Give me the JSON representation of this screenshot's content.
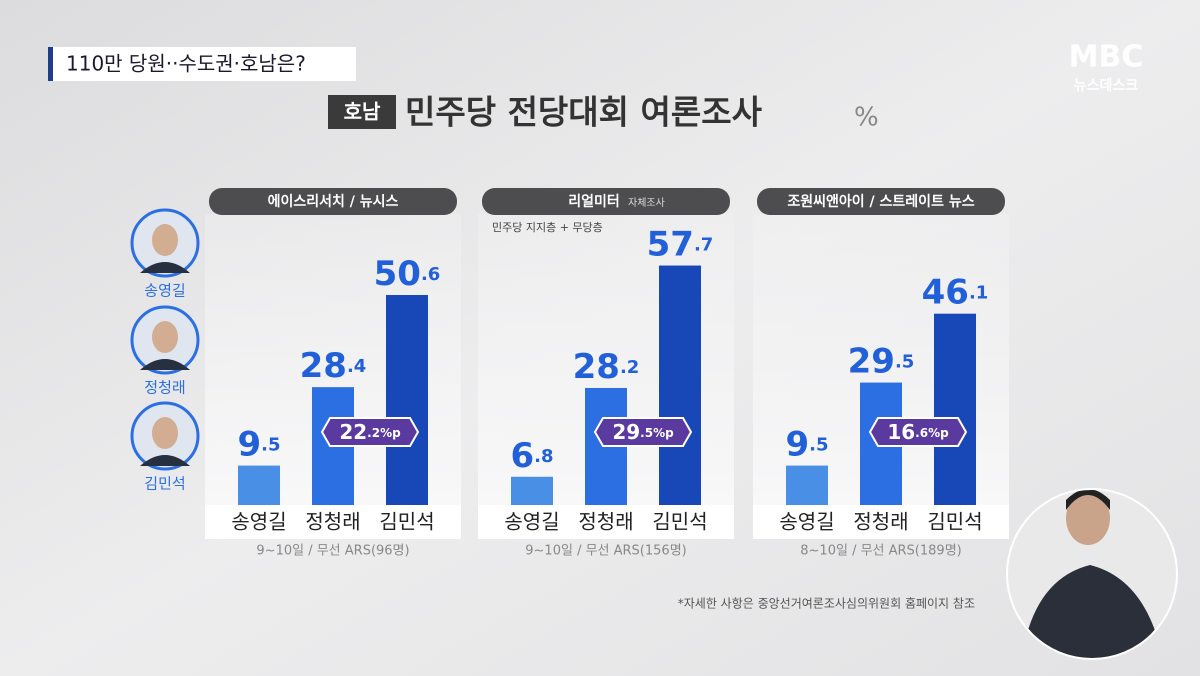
{
  "header": {
    "headline": "110만 당원··수도권·호남은?",
    "region": "호남",
    "title": "민주당 전당대회 여론조사",
    "unit": "%"
  },
  "logo": {
    "brand": "MBC",
    "program": "뉴스데스크"
  },
  "candidates": [
    "송영길",
    "정청래",
    "김민석"
  ],
  "footnote": "*자세한 사항은 중앙선거여론조사심의위원회 홈페이지 참조",
  "chart_data": [
    {
      "type": "bar",
      "title": "에이스리서치 / 뉴시스",
      "categories": [
        "송영길",
        "정청래",
        "김민석"
      ],
      "values": [
        9.5,
        28.4,
        50.6
      ],
      "colors": [
        "#4a8fe6",
        "#2b6fe3",
        "#1848b8"
      ],
      "annotation": "22.2%p",
      "note": "9~10일 / 무선 ARS(96명)"
    },
    {
      "type": "bar",
      "title": "리얼미터",
      "title_note": "자체조사",
      "subtitle": "민주당 지지층 + 무당층",
      "categories": [
        "송영길",
        "정청래",
        "김민석"
      ],
      "values": [
        6.8,
        28.2,
        57.7
      ],
      "colors": [
        "#4a8fe6",
        "#2b6fe3",
        "#1848b8"
      ],
      "annotation": "29.5%p",
      "note": "9~10일 / 무선 ARS(156명)"
    },
    {
      "type": "bar",
      "title": "조원씨앤아이 / 스트레이트 뉴스",
      "categories": [
        "송영길",
        "정청래",
        "김민석"
      ],
      "values": [
        9.5,
        29.5,
        46.1
      ],
      "colors": [
        "#4a8fe6",
        "#2b6fe3",
        "#1848b8"
      ],
      "annotation": "16.6%p",
      "note": "8~10일 / 무선 ARS(189명)"
    }
  ]
}
